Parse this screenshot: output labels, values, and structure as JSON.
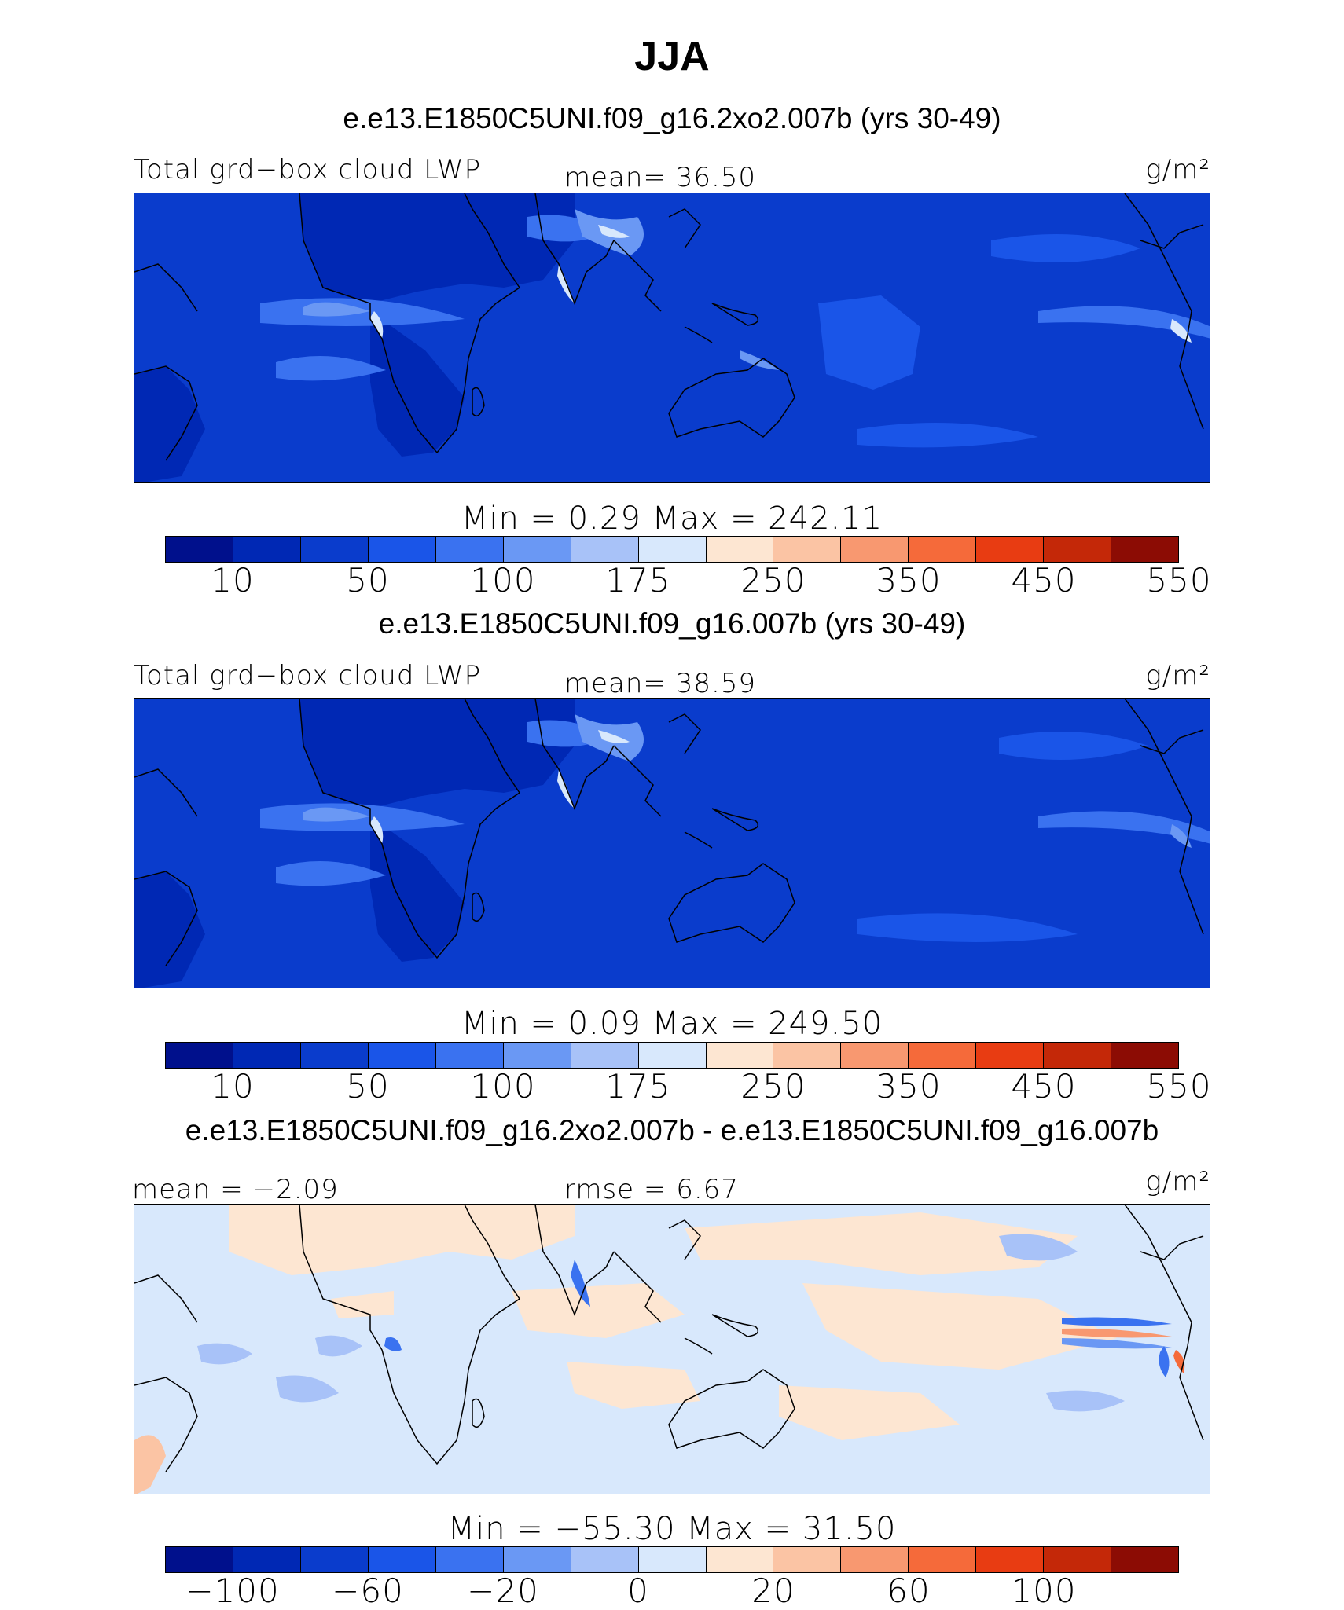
{
  "title": "JJA",
  "units": "g/m²",
  "colors": {
    "seq_levels": [
      "#00108c",
      "#0028b4",
      "#0a3ccc",
      "#1a55e8",
      "#3a72f0",
      "#6a98f4",
      "#a8c2f8",
      "#d8e8fc",
      "#fde6d2",
      "#fbc4a4",
      "#f89870",
      "#f56a3a",
      "#e83c12",
      "#c42808",
      "#8c0c04"
    ],
    "diff_levels": [
      "#00108c",
      "#0028b4",
      "#0a3ccc",
      "#1a55e8",
      "#3a72f0",
      "#6a98f4",
      "#a8c2f8",
      "#d8e8fc",
      "#fde6d2",
      "#fbc4a4",
      "#f89870",
      "#f56a3a",
      "#e83c12",
      "#c42808",
      "#8c0c04"
    ]
  },
  "panels": [
    {
      "case": "e.e13.E1850C5UNI.f09_g16.2xo2.007b (yrs 30-49)",
      "left_label": "Total grd−box cloud LWP",
      "mid_label": "mean=   36.50",
      "min_max": "Min  =    0.29  Max  =  242.11",
      "tick_labels": [
        "10",
        "50",
        "100",
        "175",
        "250",
        "350",
        "450",
        "550"
      ]
    },
    {
      "case": "e.e13.E1850C5UNI.f09_g16.007b (yrs 30-49)",
      "left_label": "Total grd−box cloud LWP",
      "mid_label": "mean=   38.59",
      "min_max": "Min  =    0.09  Max  =  249.50",
      "tick_labels": [
        "10",
        "50",
        "100",
        "175",
        "250",
        "350",
        "450",
        "550"
      ]
    },
    {
      "case": "e.e13.E1850C5UNI.f09_g16.2xo2.007b - e.e13.E1850C5UNI.f09_g16.007b",
      "left_label": "mean  =  −2.09",
      "mid_label": "rmse  =    6.67",
      "min_max": "Min  =  −55.30  Max  =   31.50",
      "tick_labels": [
        "−100",
        "−60",
        "−20",
        "0",
        "20",
        "60",
        "100"
      ]
    }
  ]
}
